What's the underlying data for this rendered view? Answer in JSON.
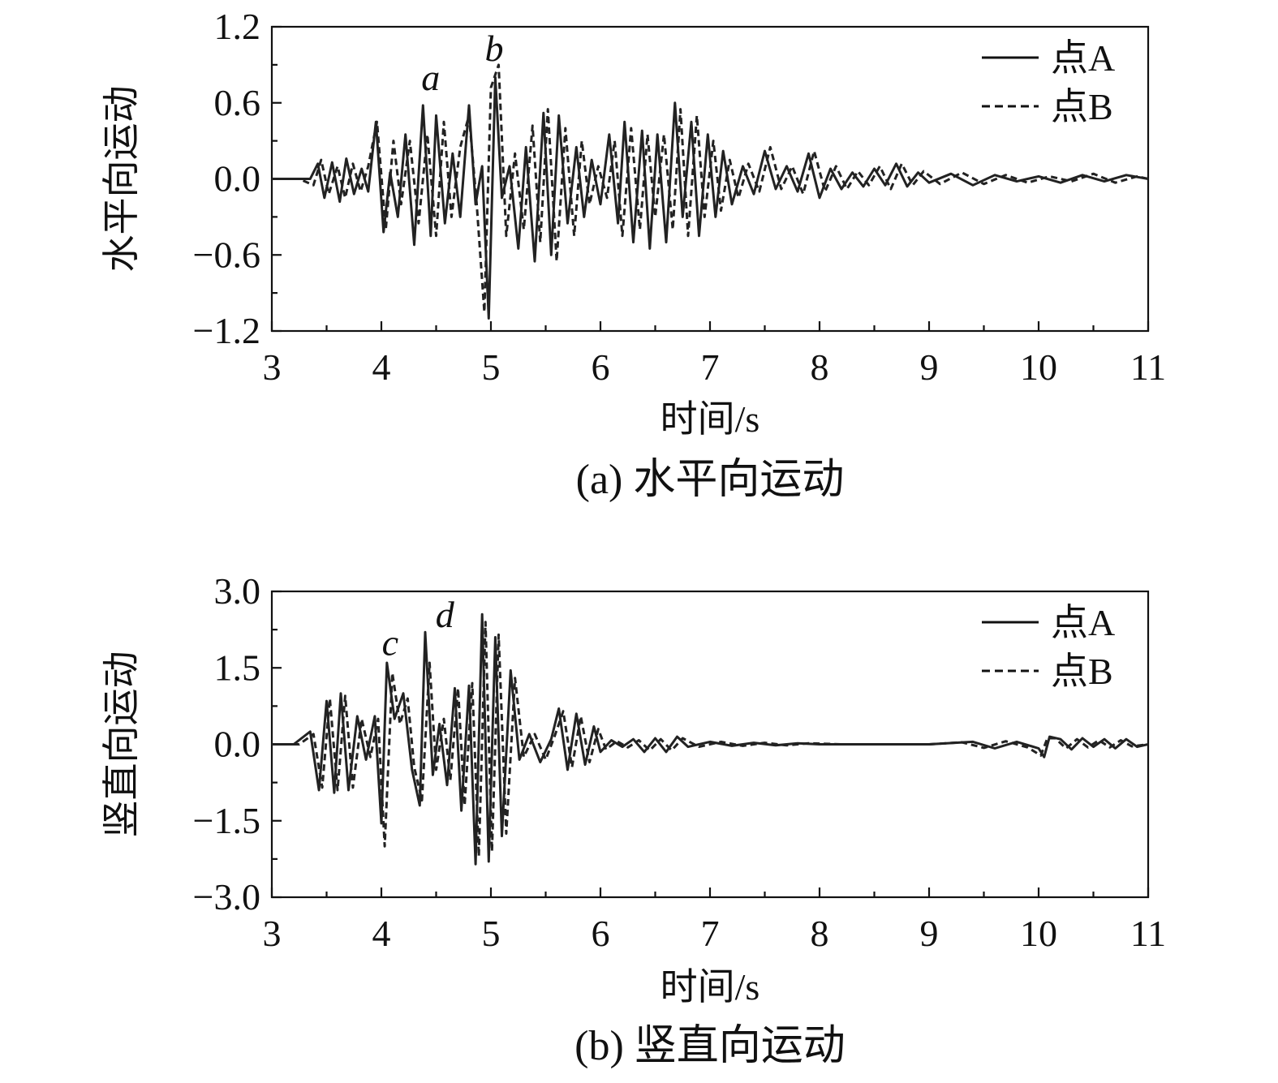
{
  "chart_data": [
    {
      "id": "panel-a",
      "type": "line",
      "caption": "(a) 水平向运动",
      "xlabel": "时间/s",
      "ylabel": "水平向运动",
      "xlim": [
        3,
        11
      ],
      "ylim": [
        -1.2,
        1.2
      ],
      "xticks": [
        "3",
        "4",
        "5",
        "6",
        "7",
        "8",
        "9",
        "10",
        "11"
      ],
      "yticks": [
        "−1.2",
        "−0.6",
        "0.0",
        "0.6",
        "1.2"
      ],
      "yticks_values": [
        -1.2,
        -0.6,
        0.0,
        0.6,
        1.2
      ],
      "xticks_values": [
        3,
        4,
        5,
        6,
        7,
        8,
        9,
        10,
        11
      ],
      "legend": {
        "position": "top-right",
        "entries": [
          {
            "label": "点A",
            "style": "solid"
          },
          {
            "label": "点B",
            "style": "dashed"
          }
        ]
      },
      "annotations": [
        {
          "text": "a",
          "x": 4.45,
          "y": 0.7
        },
        {
          "text": "b",
          "x": 5.03,
          "y": 0.93
        }
      ],
      "series": [
        {
          "name": "点A",
          "style": "solid",
          "x": [
            3.0,
            3.2,
            3.35,
            3.42,
            3.48,
            3.55,
            3.62,
            3.68,
            3.75,
            3.82,
            3.88,
            3.95,
            4.02,
            4.08,
            4.15,
            4.22,
            4.3,
            4.38,
            4.45,
            4.5,
            4.58,
            4.65,
            4.72,
            4.8,
            4.86,
            4.92,
            4.98,
            5.04,
            5.1,
            5.17,
            5.25,
            5.32,
            5.4,
            5.48,
            5.55,
            5.62,
            5.7,
            5.78,
            5.85,
            5.92,
            6.0,
            6.08,
            6.16,
            6.22,
            6.3,
            6.38,
            6.45,
            6.52,
            6.6,
            6.68,
            6.75,
            6.83,
            6.9,
            6.98,
            7.05,
            7.12,
            7.2,
            7.3,
            7.4,
            7.5,
            7.6,
            7.7,
            7.8,
            7.9,
            8.0,
            8.1,
            8.2,
            8.3,
            8.4,
            8.5,
            8.6,
            8.7,
            8.8,
            8.9,
            9.0,
            9.2,
            9.4,
            9.6,
            9.8,
            10.0,
            10.2,
            10.4,
            10.6,
            10.8,
            11.0
          ],
          "y": [
            0.0,
            0.0,
            0.0,
            0.12,
            -0.15,
            0.13,
            -0.18,
            0.16,
            -0.12,
            0.08,
            -0.1,
            0.45,
            -0.42,
            0.05,
            -0.3,
            0.35,
            -0.52,
            0.58,
            -0.45,
            0.5,
            -0.35,
            0.2,
            -0.3,
            0.58,
            -0.2,
            0.1,
            -1.1,
            0.8,
            -0.15,
            0.1,
            -0.55,
            0.25,
            -0.65,
            0.52,
            -0.6,
            0.5,
            -0.35,
            0.25,
            -0.3,
            0.15,
            -0.2,
            0.35,
            -0.35,
            0.45,
            -0.5,
            0.38,
            -0.55,
            0.35,
            -0.5,
            0.6,
            -0.3,
            0.45,
            -0.45,
            0.35,
            -0.3,
            0.22,
            -0.2,
            0.1,
            -0.12,
            0.22,
            -0.08,
            0.1,
            -0.1,
            0.2,
            -0.15,
            0.08,
            -0.08,
            0.05,
            -0.06,
            0.08,
            -0.05,
            0.12,
            -0.06,
            0.05,
            -0.03,
            0.04,
            -0.05,
            0.03,
            -0.02,
            0.02,
            -0.03,
            0.03,
            -0.02,
            0.03,
            0.0
          ]
        },
        {
          "name": "点B",
          "style": "dashed",
          "x": [
            3.0,
            3.25,
            3.38,
            3.45,
            3.52,
            3.6,
            3.67,
            3.74,
            3.81,
            3.88,
            3.96,
            4.04,
            4.11,
            4.18,
            4.26,
            4.34,
            4.42,
            4.5,
            4.57,
            4.64,
            4.72,
            4.8,
            4.87,
            4.94,
            5.0,
            5.07,
            5.14,
            5.22,
            5.3,
            5.38,
            5.45,
            5.52,
            5.6,
            5.68,
            5.76,
            5.83,
            5.9,
            5.98,
            6.06,
            6.13,
            6.2,
            6.28,
            6.36,
            6.43,
            6.5,
            6.58,
            6.66,
            6.73,
            6.8,
            6.88,
            6.95,
            7.03,
            7.1,
            7.18,
            7.26,
            7.35,
            7.45,
            7.55,
            7.65,
            7.75,
            7.85,
            7.95,
            8.05,
            8.15,
            8.25,
            8.35,
            8.45,
            8.55,
            8.65,
            8.75,
            8.85,
            8.95,
            9.1,
            9.3,
            9.5,
            9.7,
            9.9,
            10.1,
            10.3,
            10.5,
            10.7,
            10.9,
            11.0
          ],
          "y": [
            0.0,
            0.0,
            -0.05,
            0.15,
            -0.12,
            0.1,
            -0.15,
            0.12,
            -0.1,
            0.1,
            0.45,
            -0.4,
            0.3,
            -0.2,
            0.3,
            -0.35,
            0.35,
            -0.45,
            0.45,
            -0.3,
            0.25,
            0.5,
            -0.2,
            -1.05,
            0.72,
            0.9,
            -0.45,
            0.2,
            -0.4,
            0.42,
            -0.5,
            0.55,
            -0.65,
            0.4,
            -0.45,
            0.3,
            -0.2,
            0.1,
            -0.15,
            0.3,
            -0.45,
            0.4,
            -0.4,
            0.35,
            -0.3,
            0.35,
            -0.4,
            0.55,
            -0.45,
            0.5,
            -0.3,
            0.3,
            -0.25,
            0.15,
            -0.15,
            0.12,
            -0.1,
            0.25,
            -0.08,
            0.1,
            -0.12,
            0.22,
            -0.1,
            0.1,
            -0.08,
            0.06,
            -0.05,
            0.1,
            -0.08,
            0.12,
            -0.05,
            0.06,
            -0.04,
            0.05,
            -0.04,
            0.03,
            -0.03,
            0.02,
            -0.02,
            0.04,
            -0.03,
            0.02,
            0.0
          ]
        }
      ]
    },
    {
      "id": "panel-b",
      "type": "line",
      "caption": "(b) 竖直向运动",
      "xlabel": "时间/s",
      "ylabel": "竖直向运动",
      "xlim": [
        3,
        11
      ],
      "ylim": [
        -3.0,
        3.0
      ],
      "xticks": [
        "3",
        "4",
        "5",
        "6",
        "7",
        "8",
        "9",
        "10",
        "11"
      ],
      "yticks": [
        "−3.0",
        "−1.5",
        "0.0",
        "1.5",
        "3.0"
      ],
      "yticks_values": [
        -3.0,
        -1.5,
        0.0,
        1.5,
        3.0
      ],
      "xticks_values": [
        3,
        4,
        5,
        6,
        7,
        8,
        9,
        10,
        11
      ],
      "legend": {
        "position": "top-right",
        "entries": [
          {
            "label": "点A",
            "style": "solid"
          },
          {
            "label": "点B",
            "style": "dashed"
          }
        ]
      },
      "annotations": [
        {
          "text": "c",
          "x": 4.08,
          "y": 1.75
        },
        {
          "text": "d",
          "x": 4.58,
          "y": 2.3
        }
      ],
      "series": [
        {
          "name": "点A",
          "style": "solid",
          "x": [
            3.0,
            3.2,
            3.35,
            3.43,
            3.5,
            3.57,
            3.63,
            3.7,
            3.78,
            3.86,
            3.94,
            4.0,
            4.05,
            4.12,
            4.2,
            4.28,
            4.35,
            4.4,
            4.47,
            4.53,
            4.6,
            4.67,
            4.73,
            4.8,
            4.86,
            4.92,
            4.98,
            5.04,
            5.1,
            5.18,
            5.26,
            5.35,
            5.45,
            5.55,
            5.62,
            5.7,
            5.78,
            5.86,
            5.94,
            6.0,
            6.1,
            6.2,
            6.3,
            6.4,
            6.5,
            6.6,
            6.7,
            6.8,
            7.0,
            7.2,
            7.4,
            7.6,
            7.8,
            8.0,
            8.5,
            9.0,
            9.4,
            9.6,
            9.8,
            10.0,
            10.05,
            10.1,
            10.2,
            10.3,
            10.4,
            10.5,
            10.6,
            10.7,
            10.8,
            10.9,
            11.0
          ],
          "y": [
            0.0,
            0.0,
            0.25,
            -0.9,
            0.85,
            -0.95,
            1.0,
            -0.9,
            0.55,
            -0.3,
            0.55,
            -1.55,
            1.6,
            0.5,
            1.0,
            -0.5,
            -1.2,
            2.2,
            -0.6,
            0.4,
            -0.8,
            1.1,
            -1.3,
            1.15,
            -2.35,
            2.55,
            -2.3,
            2.1,
            -1.8,
            1.45,
            -0.3,
            0.2,
            -0.35,
            0.1,
            0.7,
            -0.5,
            0.6,
            -0.4,
            0.35,
            -0.15,
            0.08,
            -0.05,
            0.1,
            -0.15,
            0.12,
            -0.15,
            0.15,
            -0.05,
            0.05,
            -0.03,
            0.03,
            -0.02,
            0.02,
            0.0,
            0.0,
            0.0,
            0.05,
            -0.08,
            0.05,
            -0.08,
            -0.25,
            0.15,
            0.1,
            -0.1,
            0.12,
            -0.05,
            0.1,
            -0.08,
            0.1,
            -0.05,
            0.0
          ]
        },
        {
          "name": "点B",
          "style": "dashed",
          "x": [
            3.0,
            3.25,
            3.38,
            3.46,
            3.53,
            3.6,
            3.67,
            3.74,
            3.82,
            3.9,
            3.97,
            4.03,
            4.1,
            4.17,
            4.24,
            4.3,
            4.37,
            4.44,
            4.5,
            4.57,
            4.63,
            4.7,
            4.76,
            4.83,
            4.89,
            4.95,
            5.01,
            5.07,
            5.14,
            5.22,
            5.3,
            5.4,
            5.5,
            5.58,
            5.66,
            5.74,
            5.82,
            5.9,
            5.98,
            6.05,
            6.15,
            6.25,
            6.35,
            6.45,
            6.55,
            6.65,
            6.75,
            6.9,
            7.1,
            7.3,
            7.5,
            7.7,
            7.9,
            8.2,
            8.6,
            9.0,
            9.3,
            9.5,
            9.7,
            9.9,
            10.02,
            10.08,
            10.15,
            10.25,
            10.35,
            10.45,
            10.55,
            10.65,
            10.75,
            10.85,
            11.0
          ],
          "y": [
            0.0,
            0.0,
            0.2,
            -0.85,
            0.9,
            -0.9,
            0.95,
            -0.85,
            0.5,
            -0.25,
            0.5,
            -2.0,
            1.4,
            0.4,
            0.9,
            -0.45,
            -1.1,
            1.6,
            -0.5,
            0.5,
            -0.7,
            1.1,
            -1.2,
            1.2,
            -2.2,
            2.4,
            -2.1,
            2.15,
            -1.75,
            1.3,
            -0.25,
            0.2,
            -0.3,
            0.15,
            0.65,
            -0.45,
            0.55,
            -0.35,
            0.3,
            -0.1,
            0.06,
            -0.06,
            0.08,
            -0.12,
            0.1,
            -0.12,
            0.12,
            -0.05,
            0.05,
            -0.03,
            0.03,
            -0.02,
            0.02,
            0.0,
            0.0,
            0.0,
            0.04,
            -0.07,
            0.06,
            -0.06,
            -0.22,
            0.12,
            0.12,
            -0.08,
            0.1,
            -0.06,
            0.08,
            -0.06,
            0.08,
            -0.04,
            0.0
          ]
        }
      ]
    }
  ]
}
